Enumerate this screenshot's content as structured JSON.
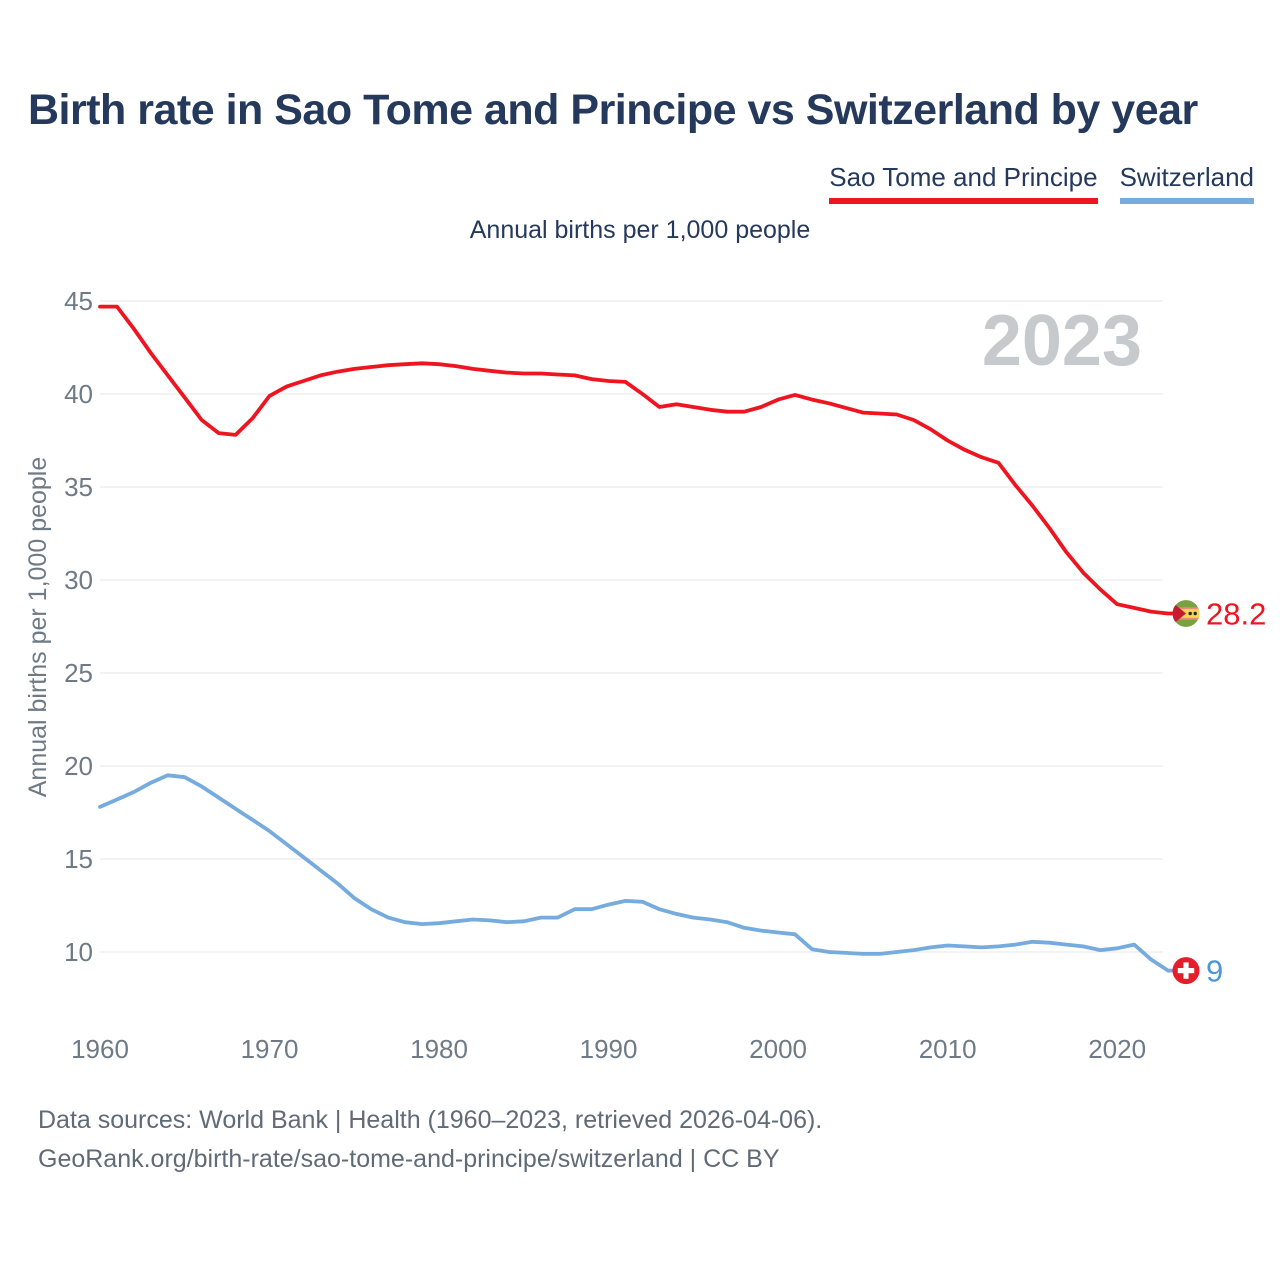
{
  "header": {
    "title": "Birth rate in Sao Tome and Principe vs Switzerland by year"
  },
  "legend": [
    {
      "label": "Sao Tome and Principe",
      "color": "#ee1520"
    },
    {
      "label": "Switzerland",
      "color": "#76abde"
    }
  ],
  "subtitle": "Annual births per 1,000 people",
  "watermark": "2023",
  "chart_data": {
    "type": "line",
    "title": "Annual births per 1,000 people",
    "xlabel": "",
    "ylabel": "Annual births per 1,000 people",
    "x": [
      1960,
      1961,
      1962,
      1963,
      1964,
      1965,
      1966,
      1967,
      1968,
      1969,
      1970,
      1971,
      1972,
      1973,
      1974,
      1975,
      1976,
      1977,
      1978,
      1979,
      1980,
      1981,
      1982,
      1983,
      1984,
      1985,
      1986,
      1987,
      1988,
      1989,
      1990,
      1991,
      1992,
      1993,
      1994,
      1995,
      1996,
      1997,
      1998,
      1999,
      2000,
      2001,
      2002,
      2003,
      2004,
      2005,
      2006,
      2007,
      2008,
      2009,
      2010,
      2011,
      2012,
      2013,
      2014,
      2015,
      2016,
      2017,
      2018,
      2019,
      2020,
      2021,
      2022,
      2023
    ],
    "xticks": [
      1960,
      1970,
      1980,
      1990,
      2000,
      2010,
      2020
    ],
    "yticks": [
      10,
      15,
      20,
      25,
      30,
      35,
      40,
      45
    ],
    "ylim": [
      10,
      45
    ],
    "grid": "horizontal",
    "legend_position": "top-right",
    "series": [
      {
        "name": "Sao Tome and Principe",
        "color": "#ee1520",
        "label_color": "#ee1520",
        "end_label": "28.2",
        "flag": "sao-tome-and-principe-flag",
        "values": [
          44.7,
          44.7,
          43.5,
          42.2,
          41.0,
          39.8,
          38.6,
          37.9,
          37.8,
          38.7,
          39.9,
          40.4,
          40.7,
          41.0,
          41.2,
          41.35,
          41.45,
          41.55,
          41.6,
          41.65,
          41.6,
          41.5,
          41.35,
          41.25,
          41.15,
          41.1,
          41.1,
          41.05,
          41.0,
          40.8,
          40.7,
          40.65,
          40.0,
          39.3,
          39.45,
          39.3,
          39.15,
          39.05,
          39.05,
          39.3,
          39.7,
          39.95,
          39.7,
          39.5,
          39.25,
          39.0,
          38.95,
          38.9,
          38.6,
          38.1,
          37.5,
          37.0,
          36.6,
          36.3,
          35.1,
          34.0,
          32.8,
          31.5,
          30.4,
          29.5,
          28.7,
          28.5,
          28.3,
          28.2
        ]
      },
      {
        "name": "Switzerland",
        "color": "#76abde",
        "label_color": "#4e97d6",
        "end_label": "9",
        "flag": "switzerland-flag",
        "values": [
          17.8,
          18.2,
          18.6,
          19.1,
          19.5,
          19.4,
          18.9,
          18.3,
          17.7,
          17.1,
          16.5,
          15.8,
          15.1,
          14.4,
          13.7,
          12.9,
          12.3,
          11.85,
          11.6,
          11.5,
          11.55,
          11.65,
          11.75,
          11.7,
          11.6,
          11.65,
          11.85,
          11.85,
          12.3,
          12.3,
          12.55,
          12.75,
          12.7,
          12.3,
          12.05,
          11.85,
          11.75,
          11.6,
          11.3,
          11.15,
          11.05,
          10.95,
          10.15,
          10.0,
          9.95,
          9.9,
          9.9,
          10.0,
          10.1,
          10.25,
          10.35,
          10.3,
          10.25,
          10.3,
          10.4,
          10.55,
          10.5,
          10.4,
          10.3,
          10.1,
          10.2,
          10.4,
          9.6,
          9.0
        ]
      }
    ]
  },
  "footer": {
    "line1": "Data sources: World Bank | Health (1960–2023, retrieved 2026-04-06).",
    "line2": "GeoRank.org/birth-rate/sao-tome-and-principe/switzerland | CC BY"
  }
}
